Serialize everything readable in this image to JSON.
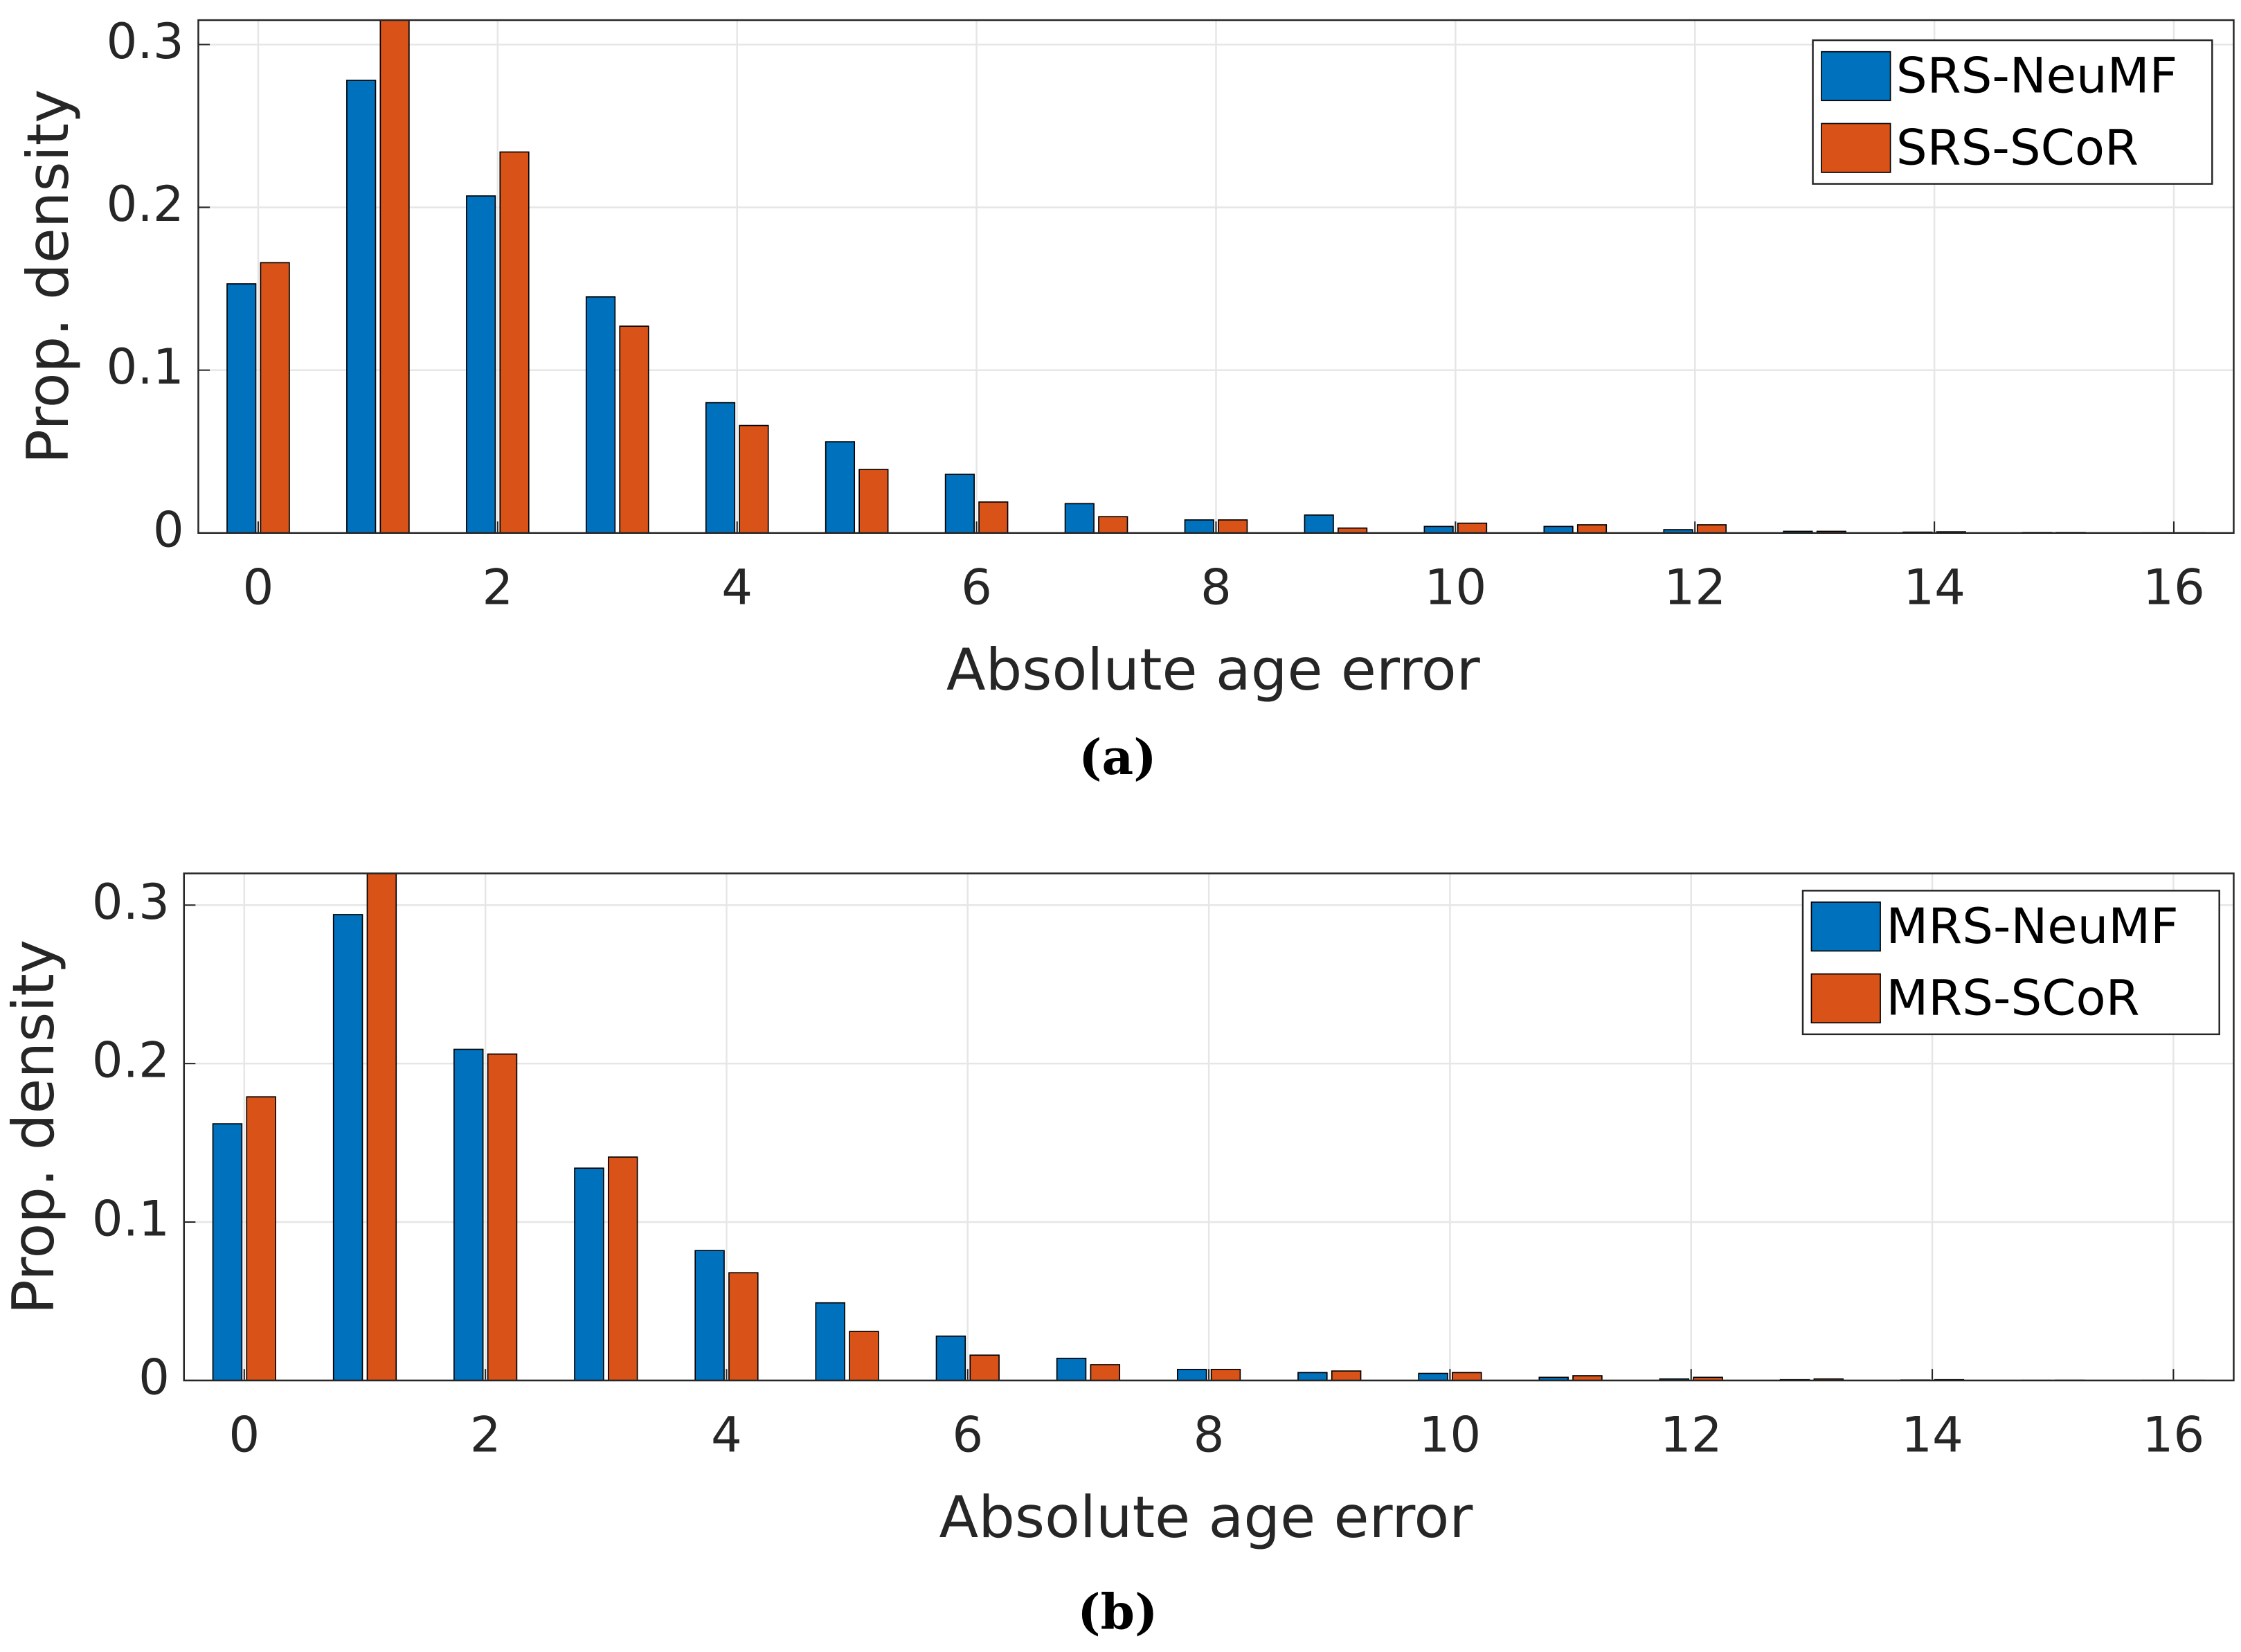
{
  "chart_data": [
    {
      "type": "bar",
      "caption": "(a)",
      "xlabel": "Absolute age error",
      "ylabel": "Prop. density",
      "x": [
        0,
        1,
        2,
        3,
        4,
        5,
        6,
        7,
        8,
        9,
        10,
        11,
        12,
        13,
        14,
        15,
        16
      ],
      "series": [
        {
          "name": "SRS-NeuMF",
          "color": "#0072BD",
          "values": [
            0.153,
            0.278,
            0.207,
            0.145,
            0.08,
            0.056,
            0.036,
            0.018,
            0.008,
            0.011,
            0.004,
            0.004,
            0.002,
            0.001,
            0.0005,
            0.0003,
            0.0002
          ]
        },
        {
          "name": "SRS-SCoR",
          "color": "#D95319",
          "values": [
            0.166,
            0.32,
            0.234,
            0.127,
            0.066,
            0.039,
            0.019,
            0.01,
            0.008,
            0.003,
            0.006,
            0.005,
            0.005,
            0.001,
            0.0007,
            0.0003,
            0.0002
          ]
        }
      ],
      "xlim": [
        -0.5,
        16.5
      ],
      "ylim": [
        0,
        0.315
      ],
      "xticks": [
        0,
        2,
        4,
        6,
        8,
        10,
        12,
        14,
        16
      ],
      "yticks": [
        0,
        0.1,
        0.2,
        0.3
      ],
      "grid": true,
      "legend": "upper right"
    },
    {
      "type": "bar",
      "caption": "(b)",
      "xlabel": "Absolute age error",
      "ylabel": "Prop. density",
      "x": [
        0,
        1,
        2,
        3,
        4,
        5,
        6,
        7,
        8,
        9,
        10,
        11,
        12,
        13,
        14,
        15,
        16
      ],
      "series": [
        {
          "name": "MRS-NeuMF",
          "color": "#0072BD",
          "values": [
            0.162,
            0.294,
            0.209,
            0.134,
            0.082,
            0.049,
            0.028,
            0.014,
            0.007,
            0.005,
            0.0045,
            0.002,
            0.001,
            0.0005,
            0.0003,
            0.0001,
            0.0001
          ]
        },
        {
          "name": "MRS-SCoR",
          "color": "#D95319",
          "values": [
            0.179,
            0.33,
            0.206,
            0.141,
            0.068,
            0.031,
            0.016,
            0.01,
            0.007,
            0.006,
            0.005,
            0.003,
            0.002,
            0.001,
            0.0005,
            0.0002,
            0.0001
          ]
        }
      ],
      "xlim": [
        -0.5,
        16.5
      ],
      "ylim": [
        0,
        0.32
      ],
      "xticks": [
        0,
        2,
        4,
        6,
        8,
        10,
        12,
        14,
        16
      ],
      "yticks": [
        0,
        0.1,
        0.2,
        0.3
      ],
      "grid": true,
      "legend": "upper right"
    }
  ]
}
